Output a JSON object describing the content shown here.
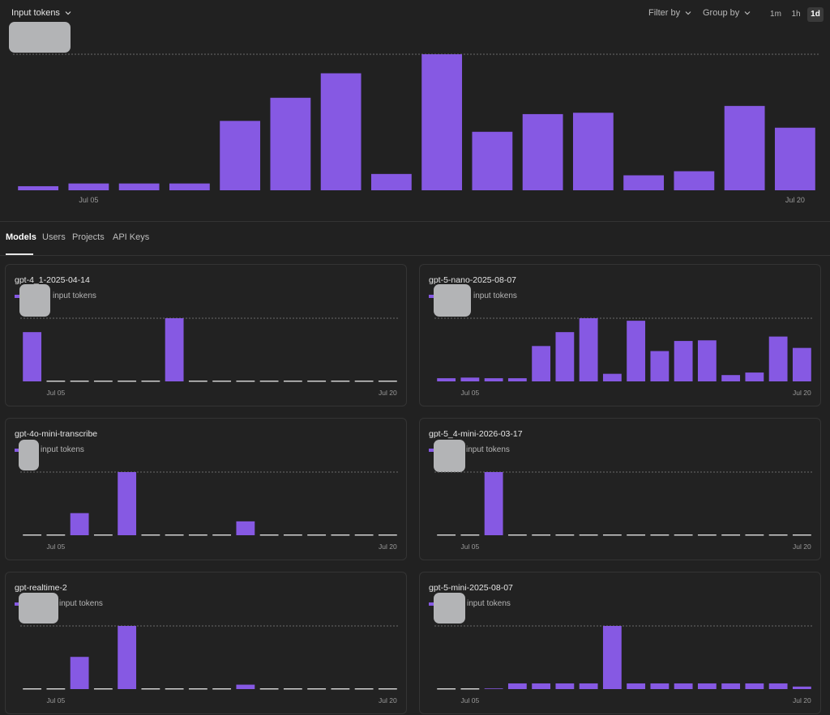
{
  "toolbar": {
    "metric_label": "Input tokens",
    "filter_label": "Filter by",
    "group_label": "Group by",
    "periods": [
      "1m",
      "1h",
      "1d"
    ],
    "active_period": "1d"
  },
  "colors": {
    "accent": "#8659e3",
    "background": "#212121",
    "card_border": "#343434"
  },
  "main_chart": {
    "chart_data": {
      "type": "bar",
      "x_ticks": [
        "Jul 05",
        "Jul 20"
      ],
      "tick_positions": [
        1,
        15
      ],
      "values": [
        3,
        5,
        5,
        5,
        51,
        68,
        86,
        12,
        100,
        43,
        56,
        57,
        11,
        14,
        62,
        46
      ],
      "ylim": [
        0,
        100
      ],
      "y_unit": "relative bar height (% of max)",
      "reference_line_at": 100,
      "grid": false
    }
  },
  "tabs": [
    "Models",
    "Users",
    "Projects",
    "API Keys"
  ],
  "active_tab": "Models",
  "models": [
    {
      "title": "gpt-4_1-2025-04-14",
      "legend": "input tokens",
      "chart_data": {
        "type": "bar",
        "x_ticks": [
          "Jul 05",
          "Jul 20"
        ],
        "tick_positions": [
          1,
          15
        ],
        "values": [
          78,
          0,
          0,
          0,
          0,
          0,
          100,
          0,
          0,
          0,
          0,
          0,
          0,
          0,
          0,
          0
        ],
        "ylim": [
          0,
          100
        ]
      }
    },
    {
      "title": "gpt-5-nano-2025-08-07",
      "legend": "input tokens",
      "chart_data": {
        "type": "bar",
        "x_ticks": [
          "Jul 05",
          "Jul 20"
        ],
        "tick_positions": [
          1,
          15
        ],
        "values": [
          5,
          6,
          5,
          5,
          56,
          78,
          100,
          12,
          96,
          48,
          64,
          65,
          10,
          14,
          71,
          53
        ],
        "ylim": [
          0,
          100
        ]
      }
    },
    {
      "title": "gpt-4o-mini-transcribe",
      "legend": "input tokens",
      "chart_data": {
        "type": "bar",
        "x_ticks": [
          "Jul 05",
          "Jul 20"
        ],
        "tick_positions": [
          1,
          15
        ],
        "values": [
          0,
          0,
          35,
          0,
          100,
          0,
          0,
          0,
          0,
          22,
          0,
          0,
          0,
          0,
          0,
          0
        ],
        "ylim": [
          0,
          100
        ]
      }
    },
    {
      "title": "gpt-5_4-mini-2026-03-17",
      "legend": "input tokens",
      "chart_data": {
        "type": "bar",
        "x_ticks": [
          "Jul 05",
          "Jul 20"
        ],
        "tick_positions": [
          1,
          15
        ],
        "values": [
          0,
          0,
          100,
          0,
          0,
          0,
          0,
          0,
          0,
          0,
          0,
          0,
          0,
          0,
          0,
          0
        ],
        "ylim": [
          0,
          100
        ]
      }
    },
    {
      "title": "gpt-realtime-2",
      "legend": "input tokens",
      "chart_data": {
        "type": "bar",
        "x_ticks": [
          "Jul 05",
          "Jul 20"
        ],
        "tick_positions": [
          1,
          15
        ],
        "values": [
          0,
          0,
          51,
          0,
          100,
          0,
          0,
          0,
          0,
          7,
          0,
          0,
          0,
          0,
          0,
          0
        ],
        "ylim": [
          0,
          100
        ]
      }
    },
    {
      "title": "gpt-5-mini-2025-08-07",
      "legend": "input tokens",
      "chart_data": {
        "type": "bar",
        "x_ticks": [
          "Jul 05",
          "Jul 20"
        ],
        "tick_positions": [
          1,
          15
        ],
        "values": [
          0,
          0,
          1,
          9,
          9,
          9,
          9,
          100,
          9,
          9,
          9,
          9,
          9,
          9,
          9,
          4
        ],
        "ylim": [
          0,
          100
        ]
      }
    }
  ]
}
